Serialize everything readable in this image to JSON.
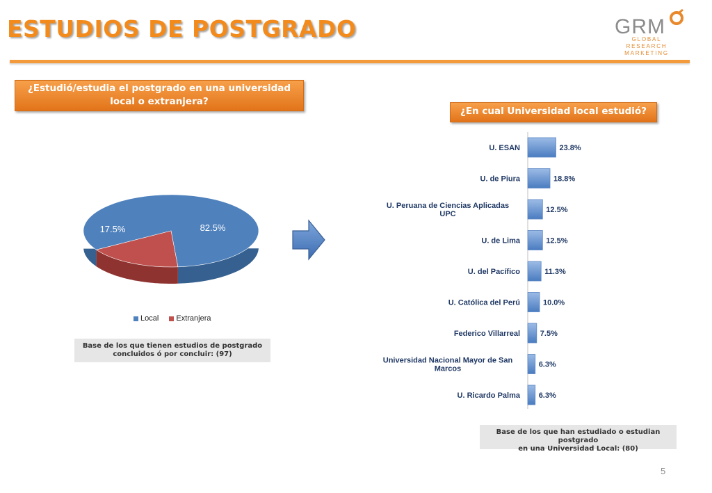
{
  "page_title": "ESTUDIOS DE POSTGRADO",
  "logo": {
    "mark": "GRM",
    "line1": "GLOBAL RESEARCH",
    "line2": "MARKETING"
  },
  "question1": {
    "line1": "¿Estudió/estudia el postgrado en una universidad",
    "line2": "local o extranjera?"
  },
  "question2": "¿En cual Universidad local estudió?",
  "base1": {
    "line1": "Base de los que tienen estudios de postgrado",
    "line2": "concluidos ó por concluir: (97)"
  },
  "base2": {
    "line1": "Base de los que han estudiado o estudian postgrado",
    "line2": "en una Universidad Local: (80)"
  },
  "page_number": "5",
  "colors": {
    "orange": "#f28a1c",
    "blue": "#4f81bd",
    "red": "#c0504d"
  },
  "chart_data": [
    {
      "type": "pie",
      "categories": [
        "Local",
        "Extranjera"
      ],
      "values": [
        82.5,
        17.5
      ],
      "data_labels": [
        "82.5%",
        "17.5%"
      ],
      "legend": {
        "position": "bottom",
        "entries": [
          "Local",
          "Extranjera"
        ]
      },
      "colors": [
        "#4f81bd",
        "#c0504d"
      ]
    },
    {
      "type": "bar",
      "orientation": "horizontal",
      "categories": [
        "U. ESAN",
        "U. de Piura",
        "U. Peruana de Ciencias Aplicadas UPC",
        "U. de Lima",
        "U. del Pacífico",
        "U. Católica del Perú",
        "Federico Villarreal",
        "Universidad Nacional Mayor de San Marcos",
        "U. Ricardo Palma"
      ],
      "category_lines": [
        [
          "U. ESAN"
        ],
        [
          "U. de Piura"
        ],
        [
          "U. Peruana de Ciencias Aplicadas",
          "UPC"
        ],
        [
          "U. de Lima"
        ],
        [
          "U. del Pacífico"
        ],
        [
          "U. Católica del Perú"
        ],
        [
          "Federico Villarreal"
        ],
        [
          "Universidad Nacional Mayor de San",
          "Marcos"
        ],
        [
          "U. Ricardo Palma"
        ]
      ],
      "values": [
        23.8,
        18.8,
        12.5,
        12.5,
        11.3,
        10.0,
        7.5,
        6.3,
        6.3
      ],
      "data_labels": [
        "23.8%",
        "18.8%",
        "12.5%",
        "12.5%",
        "11.3%",
        "10.0%",
        "7.5%",
        "6.3%",
        "6.3%"
      ],
      "xlim": [
        0,
        100
      ],
      "color": "#4f81bd"
    }
  ]
}
